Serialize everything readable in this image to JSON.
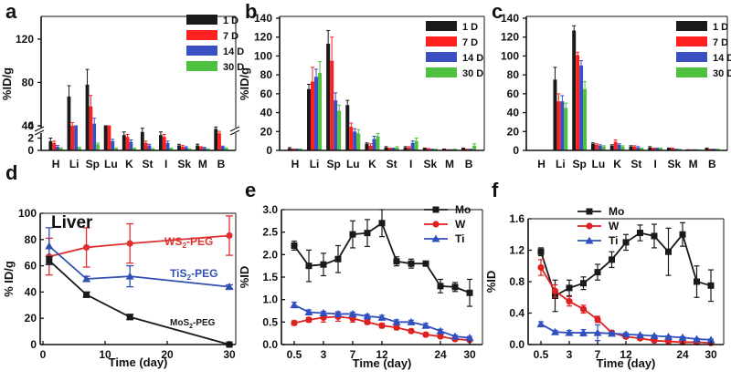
{
  "colors": {
    "d1": "#1a1a1a",
    "d7": "#ff2020",
    "d14": "#3a4fc0",
    "d30": "#50c040",
    "mo": "#1a1a1a",
    "w": "#e02020",
    "ti": "#3050c0",
    "ws2": "#e03030",
    "tis2": "#3050b0",
    "mos2": "#1a1a1a"
  },
  "chart_data": [
    {
      "panel": "a",
      "type": "bar",
      "ylabel": "%ID/g",
      "categories": [
        "H",
        "Li",
        "Sp",
        "Lu",
        "K",
        "St",
        "I",
        "Sk",
        "M",
        "B"
      ],
      "yticks": [
        "0",
        "2",
        "4",
        "40",
        "80",
        "120"
      ],
      "series": [
        {
          "name": "1 D",
          "values": [
            1.5,
            67,
            78,
            32,
            2.5,
            3,
            2.5,
            0.8,
            0.8,
            3.5
          ],
          "err": [
            0.5,
            10,
            14,
            2,
            0.5,
            0.6,
            0.5,
            0.2,
            0.2,
            0.3
          ]
        },
        {
          "name": "7 D",
          "values": [
            1.2,
            39,
            58,
            29,
            2.2,
            1.2,
            2.2,
            0.6,
            0.5,
            2.8
          ],
          "err": [
            0.3,
            4,
            10,
            3,
            0.4,
            0.3,
            0.4,
            0.2,
            0.1,
            0.3
          ]
        },
        {
          "name": "14 D",
          "values": [
            0.6,
            22,
            42,
            1.5,
            1.4,
            0.8,
            1.2,
            0.5,
            0.4,
            0.6
          ],
          "err": [
            0.2,
            3,
            5,
            0.3,
            0.3,
            0.2,
            0.3,
            0.1,
            0.1,
            0.1
          ]
        },
        {
          "name": "30 D",
          "values": [
            0.3,
            0.4,
            1.0,
            0.3,
            0.3,
            0.2,
            0.3,
            0.2,
            0.2,
            0.3
          ],
          "err": [
            0.1,
            0.1,
            0.2,
            0.1,
            0.1,
            0.1,
            0.1,
            0.05,
            0.05,
            0.1
          ]
        }
      ]
    },
    {
      "panel": "b",
      "type": "bar",
      "ylabel": "%ID/g",
      "ylim": [
        0,
        140
      ],
      "categories": [
        "H",
        "Li",
        "Sp",
        "Lu",
        "K",
        "St",
        "I",
        "Sk",
        "M",
        "B"
      ],
      "yticks": [
        "0",
        "20",
        "40",
        "60",
        "80",
        "100",
        "120",
        "140"
      ],
      "series": [
        {
          "name": "1 D",
          "values": [
            2,
            65,
            113,
            48,
            7,
            3,
            3,
            2,
            1,
            2
          ],
          "err": [
            1,
            5,
            14,
            5,
            1,
            1,
            1,
            0.5,
            0.5,
            0.5
          ]
        },
        {
          "name": "7 D",
          "values": [
            1,
            73,
            95,
            25,
            5,
            2,
            3,
            1.5,
            0.5,
            1
          ],
          "err": [
            0.5,
            15,
            25,
            4,
            2,
            0.5,
            1,
            0.5,
            0.3,
            0.3
          ]
        },
        {
          "name": "14 D",
          "values": [
            1,
            78,
            53,
            20,
            12,
            2,
            8,
            1,
            0.5,
            1
          ],
          "err": [
            0.5,
            8,
            8,
            3,
            3,
            0.5,
            2,
            0.3,
            0.3,
            0.3
          ]
        },
        {
          "name": "30 D",
          "values": [
            1,
            82,
            42,
            18,
            15,
            3,
            10,
            1,
            1,
            5
          ],
          "err": [
            0.5,
            12,
            6,
            4,
            3,
            1,
            3,
            0.3,
            0.3,
            2
          ]
        }
      ]
    },
    {
      "panel": "c",
      "type": "bar",
      "ylabel": "",
      "ylim": [
        0,
        140
      ],
      "categories": [
        "H",
        "Li",
        "Sp",
        "Lu",
        "K",
        "St",
        "I",
        "Sk",
        "M",
        "B"
      ],
      "yticks": [
        "0",
        "20",
        "40",
        "60",
        "80",
        "100",
        "120",
        "140"
      ],
      "series": [
        {
          "name": "1 D",
          "values": [
            0,
            75,
            127,
            7,
            5,
            4,
            3,
            2,
            0.5,
            2
          ],
          "err": [
            0,
            13,
            5,
            1,
            1,
            1,
            1,
            0.5,
            0.2,
            0.5
          ]
        },
        {
          "name": "7 D",
          "values": [
            0,
            52,
            101,
            6,
            9,
            4,
            2,
            2,
            0.5,
            1
          ],
          "err": [
            0,
            8,
            3,
            1,
            2,
            1,
            0.5,
            0.5,
            0.2,
            0.3
          ]
        },
        {
          "name": "14 D",
          "values": [
            0,
            52,
            90,
            5,
            6,
            3,
            2,
            1,
            0.5,
            1
          ],
          "err": [
            0,
            6,
            5,
            1,
            1,
            1,
            0.5,
            0.3,
            0.2,
            0.3
          ]
        },
        {
          "name": "30 D",
          "values": [
            0,
            45,
            65,
            4,
            4,
            2,
            2,
            1,
            0.5,
            1
          ],
          "err": [
            0,
            5,
            8,
            1,
            1,
            0.5,
            0.5,
            0.3,
            0.2,
            0.3
          ]
        }
      ]
    },
    {
      "panel": "d",
      "type": "line",
      "title": "Liver",
      "xlabel": "Time (day)",
      "ylabel": "% ID/g",
      "xlim": [
        0,
        30
      ],
      "ylim": [
        0,
        100
      ],
      "xticks": [
        "0",
        "10",
        "20",
        "30"
      ],
      "yticks": [
        "0",
        "20",
        "40",
        "60",
        "80",
        "100"
      ],
      "series": [
        {
          "name": "WS2-PEG",
          "x": [
            1,
            7,
            14,
            30
          ],
          "y": [
            67,
            74,
            77,
            83
          ],
          "err": [
            14,
            15,
            15,
            15
          ]
        },
        {
          "name": "TiS2-PEG",
          "x": [
            1,
            7,
            14,
            30
          ],
          "y": [
            75,
            50,
            52,
            44
          ],
          "err": [
            14,
            2,
            8,
            1.5
          ]
        },
        {
          "name": "MoS2-PEG",
          "x": [
            1,
            7,
            14,
            30
          ],
          "y": [
            64,
            38,
            21,
            0
          ],
          "err": [
            3,
            2,
            2,
            0.5
          ]
        }
      ],
      "labels": {
        "ws2": {
          "pre": "WS",
          "sub": "2",
          "post": "-PEG"
        },
        "tis2": {
          "pre": "TiS",
          "sub": "2",
          "post": "-PEG"
        },
        "mos2": {
          "pre": "MoS",
          "sub": "2",
          "post": "-PEG"
        }
      }
    },
    {
      "panel": "e",
      "type": "line",
      "xlabel": "Time (day)",
      "ylabel": "%ID",
      "ylim": [
        0,
        3.0
      ],
      "xticks": [
        "0.5",
        "3",
        "7",
        "12",
        "24",
        "30"
      ],
      "yticks": [
        "0.0",
        "0.5",
        "1.0",
        "1.5",
        "2.0",
        "2.5",
        "3.0"
      ],
      "series": [
        {
          "name": "Mo",
          "y": [
            2.2,
            1.75,
            1.78,
            1.9,
            2.45,
            2.48,
            2.7,
            1.85,
            1.8,
            1.8,
            1.3,
            1.28,
            1.15
          ],
          "err": [
            0.1,
            0.35,
            0.25,
            0.3,
            0.3,
            0.3,
            0.3,
            0.1,
            0.1,
            0.05,
            0.15,
            0.1,
            0.3
          ]
        },
        {
          "name": "W",
          "y": [
            0.48,
            0.55,
            0.6,
            0.62,
            0.58,
            0.5,
            0.42,
            0.38,
            0.3,
            0.22,
            0.18,
            0.12,
            0.1
          ],
          "err": [
            0.05,
            0.05,
            0.1,
            0.1,
            0.08,
            0.05,
            0.05,
            0.05,
            0.04,
            0.04,
            0.03,
            0.03,
            0.02
          ]
        },
        {
          "name": "Ti",
          "y": [
            0.88,
            0.72,
            0.7,
            0.68,
            0.68,
            0.63,
            0.6,
            0.5,
            0.5,
            0.42,
            0.3,
            0.18,
            0.15
          ],
          "err": [
            0.06,
            0.05,
            0.04,
            0.05,
            0.04,
            0.04,
            0.05,
            0.05,
            0.04,
            0.05,
            0.04,
            0.03,
            0.03
          ]
        }
      ]
    },
    {
      "panel": "f",
      "type": "line",
      "xlabel": "Time (day)",
      "ylabel": "%ID",
      "ylim": [
        0,
        1.6
      ],
      "xticks": [
        "0.5",
        "3",
        "7",
        "12",
        "24",
        "30"
      ],
      "yticks": [
        "0.0",
        "0.4",
        "0.8",
        "1.2",
        "1.6"
      ],
      "series": [
        {
          "name": "Mo",
          "y": [
            1.18,
            0.62,
            0.72,
            0.78,
            0.92,
            1.08,
            1.3,
            1.42,
            1.38,
            1.18,
            1.4,
            0.8,
            0.75
          ],
          "err": [
            0.05,
            0.2,
            0.1,
            0.08,
            0.1,
            0.1,
            0.1,
            0.1,
            0.15,
            0.3,
            0.15,
            0.2,
            0.2
          ]
        },
        {
          "name": "W",
          "y": [
            0.98,
            0.68,
            0.55,
            0.45,
            0.32,
            0.15,
            0.1,
            0.08,
            0.05,
            0.04,
            0.03,
            0.03,
            0.02
          ],
          "err": [
            0.1,
            0.08,
            0.06,
            0.05,
            0.04,
            0.03,
            0.02,
            0.02,
            0.01,
            0.01,
            0.01,
            0.01,
            0.01
          ]
        },
        {
          "name": "Ti",
          "y": [
            0.26,
            0.16,
            0.15,
            0.15,
            0.15,
            0.14,
            0.13,
            0.12,
            0.11,
            0.1,
            0.09,
            0.07,
            0.06
          ],
          "err": [
            0.03,
            0.02,
            0.03,
            0.04,
            0.1,
            0.02,
            0.02,
            0.01,
            0.01,
            0.01,
            0.01,
            0.01,
            0.01
          ]
        }
      ]
    }
  ]
}
